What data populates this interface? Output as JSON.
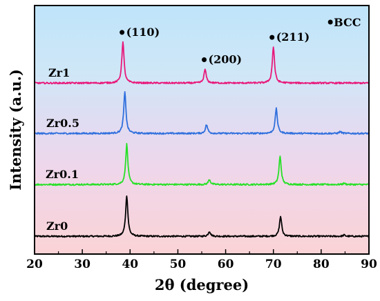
{
  "chart_data": {
    "type": "line",
    "xlabel": "2θ (degree)",
    "ylabel": "Intensity (a.u.)",
    "xlim": [
      20,
      90
    ],
    "xticks": [
      20,
      30,
      40,
      50,
      60,
      70,
      80,
      90
    ],
    "grid": false,
    "legend": "none",
    "phase_marker": {
      "label": "BCC",
      "x": 82.5
    },
    "peak_labels": [
      {
        "text": "(110)",
        "x": 38.6,
        "series": "Zr1"
      },
      {
        "text": "(200)",
        "x": 55.8,
        "series": "Zr1"
      },
      {
        "text": "(211)",
        "x": 70.0,
        "series": "Zr1"
      }
    ],
    "series": [
      {
        "name": "Zr0",
        "color": "#000000",
        "band_color": "#f9d4d8",
        "baseline": 0.03,
        "peaks": [
          {
            "x": 39.3,
            "height": 0.66
          },
          {
            "x": 56.6,
            "height": 0.08
          },
          {
            "x": 71.5,
            "height": 0.32
          },
          {
            "x": 84.8,
            "height": 0.02
          }
        ]
      },
      {
        "name": "Zr0.1",
        "color": "#26e026",
        "band_color": "#f2d6ea",
        "baseline": 0.03,
        "peaks": [
          {
            "x": 39.3,
            "height": 0.65
          },
          {
            "x": 56.6,
            "height": 0.08
          },
          {
            "x": 71.4,
            "height": 0.45
          },
          {
            "x": 84.8,
            "height": 0.02
          }
        ]
      },
      {
        "name": "Zr0.5",
        "color": "#2f6fdd",
        "band_color": "#e4dcf0",
        "baseline": 0.03,
        "peaks": [
          {
            "x": 38.9,
            "height": 0.66
          },
          {
            "x": 56.0,
            "height": 0.14
          },
          {
            "x": 70.6,
            "height": 0.4
          },
          {
            "x": 84.0,
            "height": 0.03
          }
        ]
      },
      {
        "name": "Zr1",
        "color": "#e8187a",
        "band_color": "#cfe8f6",
        "baseline": 0.03,
        "peaks": [
          {
            "x": 38.5,
            "height": 0.66
          },
          {
            "x": 55.7,
            "height": 0.22
          },
          {
            "x": 70.0,
            "height": 0.58
          }
        ]
      }
    ]
  }
}
